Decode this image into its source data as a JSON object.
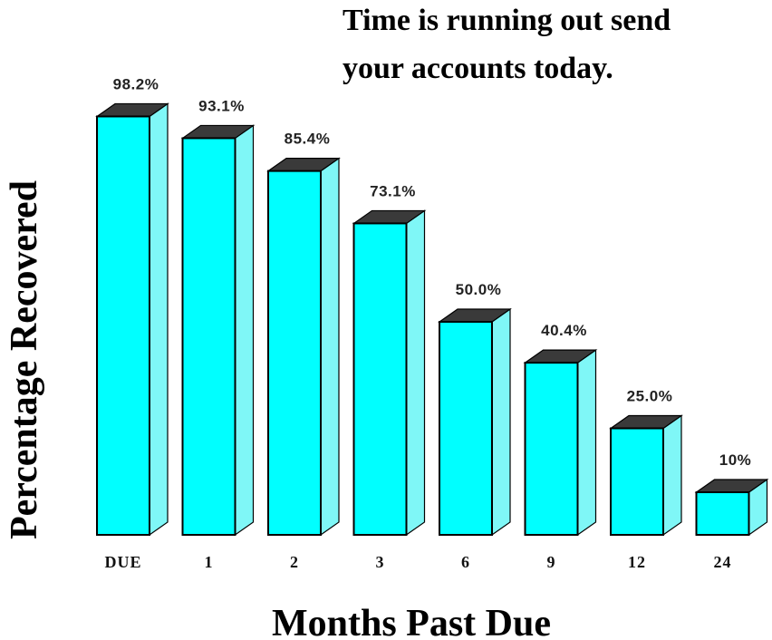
{
  "chart_data": {
    "type": "bar",
    "title_lines": [
      "Time is running out send",
      "your accounts today."
    ],
    "xlabel": "Months Past Due",
    "ylabel": "Percentage Recovered",
    "categories": [
      "DUE",
      "1",
      "2",
      "3",
      "6",
      "9",
      "12",
      "24"
    ],
    "values": [
      98.2,
      93.1,
      85.4,
      73.1,
      50.0,
      40.4,
      25.0,
      10
    ],
    "data_labels": [
      "98.2%",
      "93.1%",
      "85.4%",
      "73.1%",
      "50.0%",
      "40.4%",
      "25.0%",
      "10%"
    ],
    "ylim": [
      0,
      100
    ],
    "grid": false,
    "legend": "none",
    "style": "3d",
    "colors": {
      "bar_front": "#00FFFF",
      "bar_side": "#7FF7F7",
      "bar_top": "#3A3A3A",
      "outline": "#000000"
    }
  }
}
